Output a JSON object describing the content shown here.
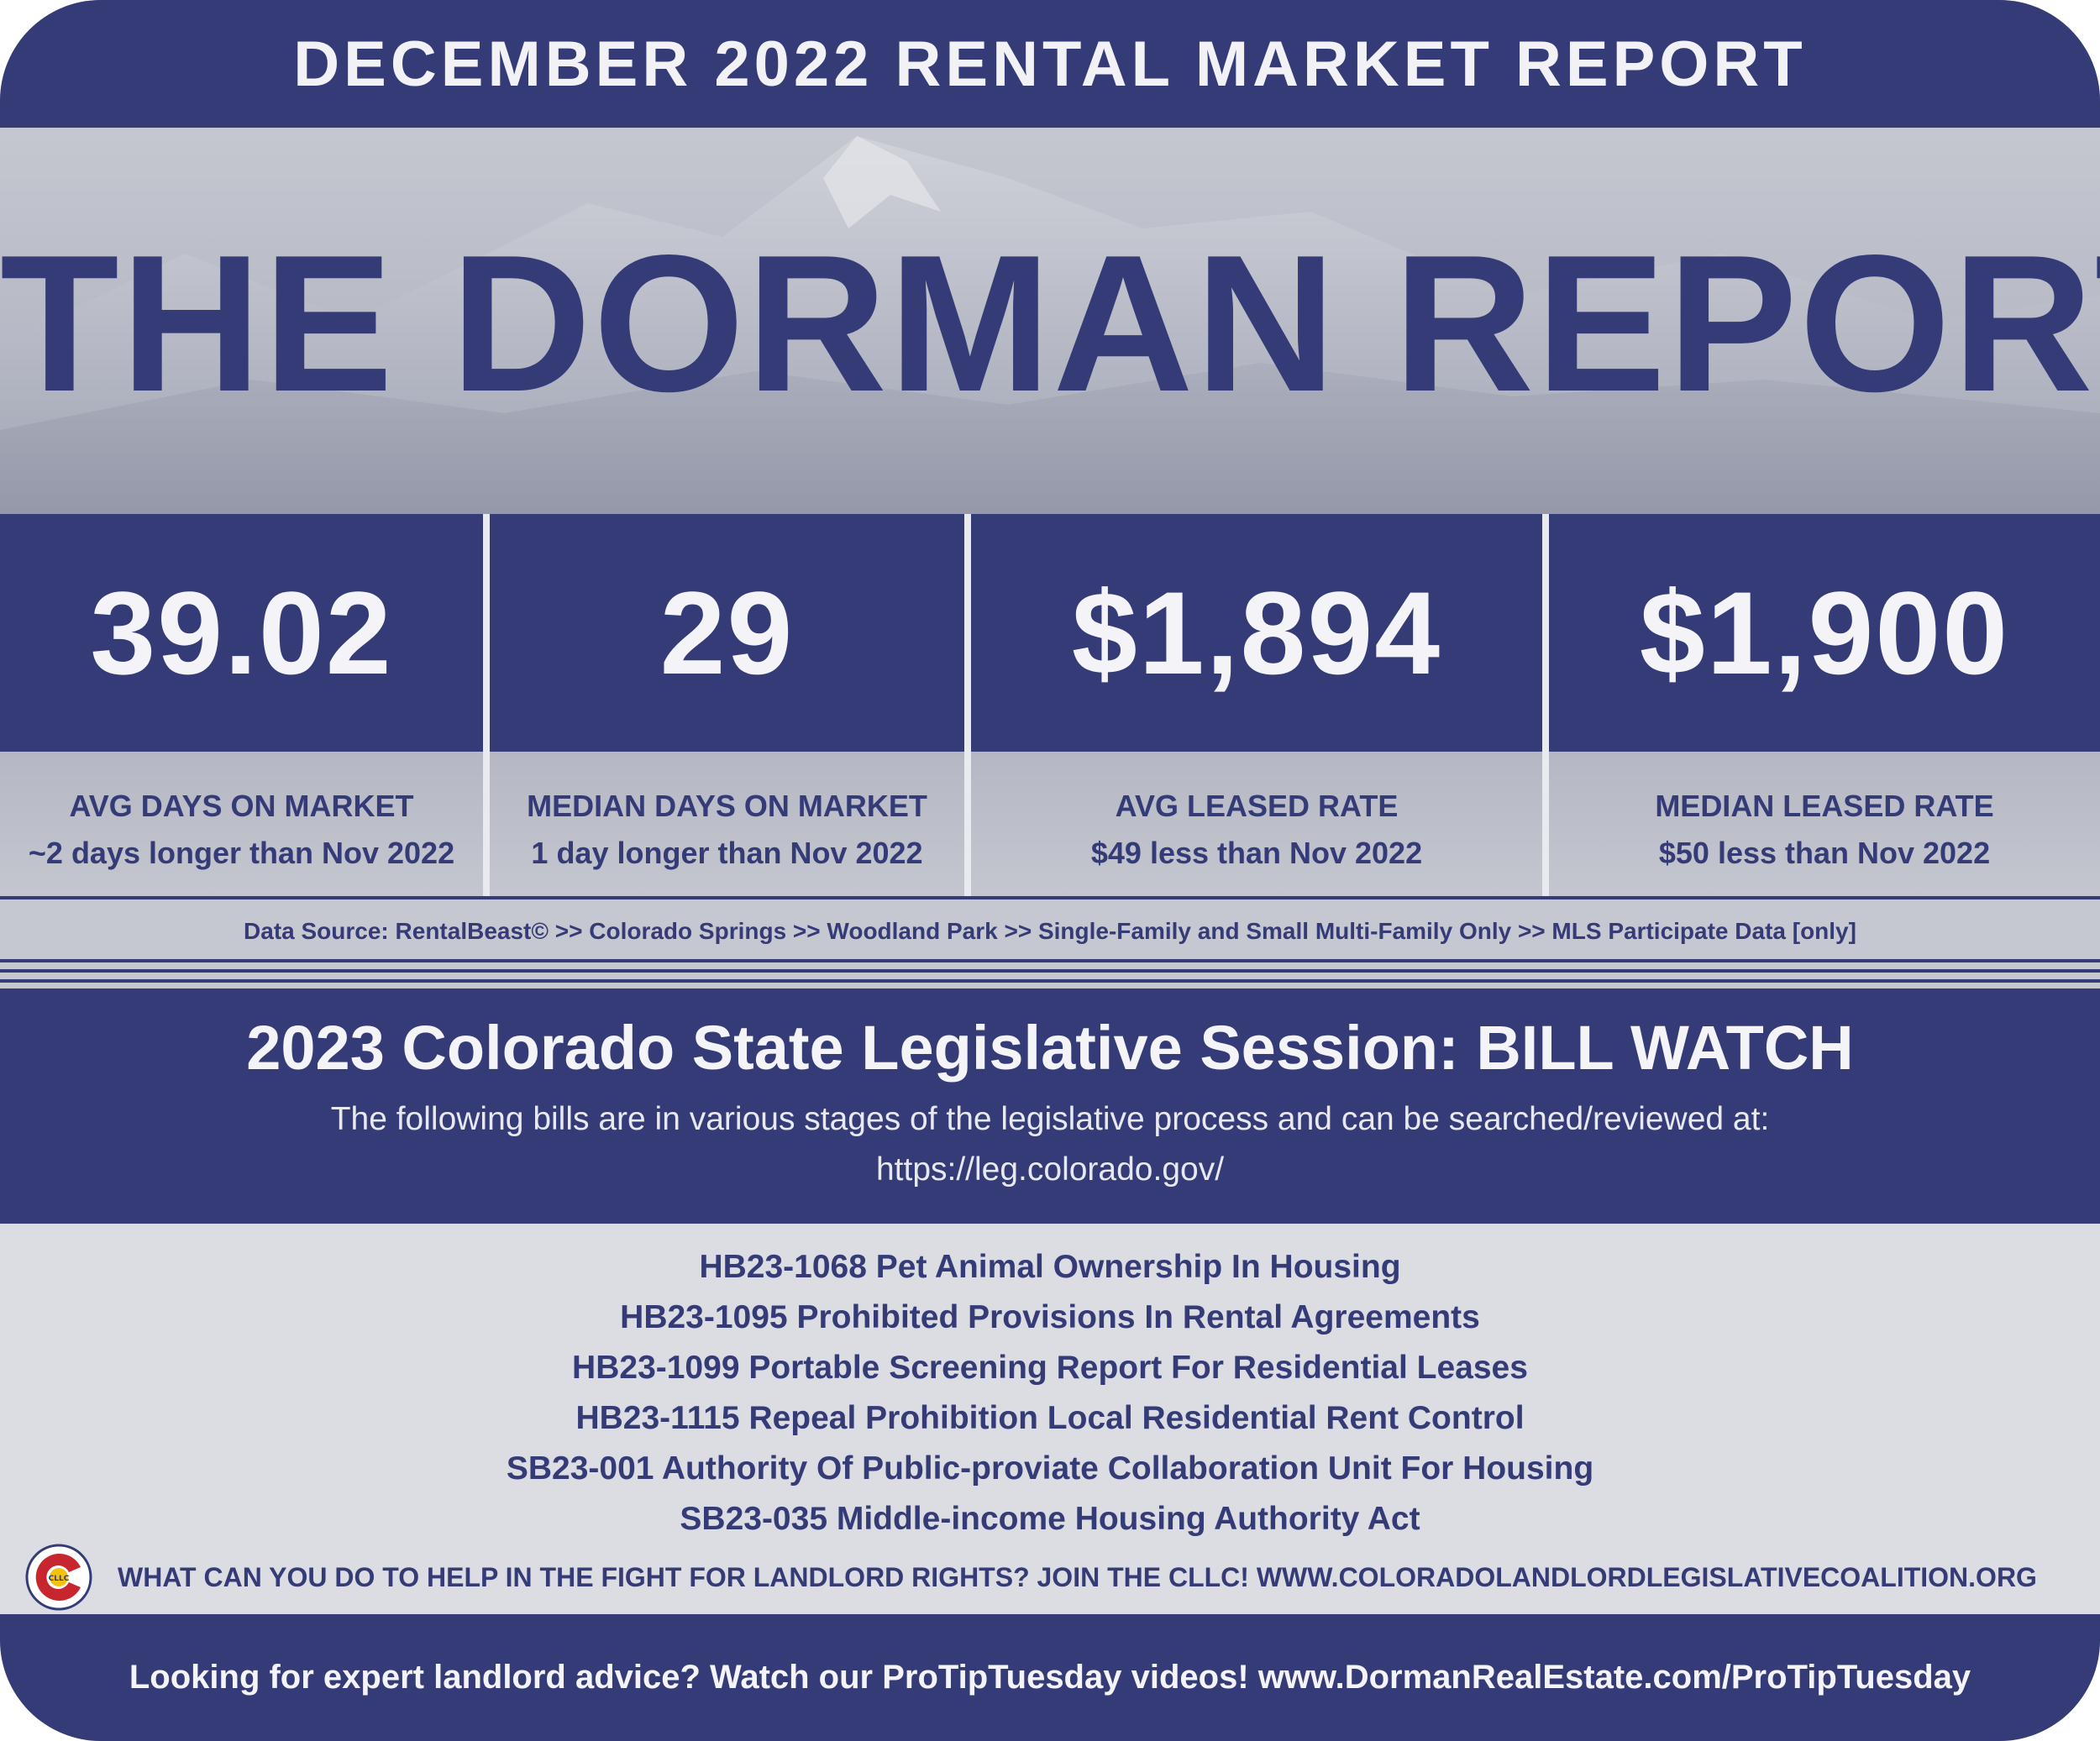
{
  "header": {
    "report_title": "DECEMBER 2022 RENTAL MARKET REPORT",
    "main_title": "THE DORMAN REPORT"
  },
  "stats": [
    {
      "value": "39.02",
      "label": "AVG DAYS ON MARKET",
      "change": "~2 days longer than Nov 2022"
    },
    {
      "value": "29",
      "label": "MEDIAN DAYS ON MARKET",
      "change": "1 day longer than Nov 2022"
    },
    {
      "value": "$1,894",
      "label": "AVG LEASED RATE",
      "change": "$49 less than Nov 2022"
    },
    {
      "value": "$1,900",
      "label": "MEDIAN LEASED RATE",
      "change": "$50 less than Nov 2022"
    }
  ],
  "data_source": "Data Source: RentalBeast© >> Colorado Springs >> Woodland Park >> Single-Family and Small Multi-Family Only >> MLS Participate Data [only]",
  "bill_watch": {
    "title": "2023 Colorado State Legislative Session: BILL WATCH",
    "description": "The following bills are in various stages of the legislative process and can be searched/reviewed at:",
    "url": "https://leg.colorado.gov/",
    "bills": [
      "HB23-1068 Pet Animal Ownership In Housing",
      "HB23-1095 Prohibited Provisions In Rental Agreements",
      "HB23-1099 Portable Screening Report For Residential Leases",
      "HB23-1115 Repeal Prohibition Local Residential Rent Control",
      "SB23-001 Authority Of Public-proviate Collaboration Unit For Housing",
      "SB23-035 Middle-income Housing Authority Act"
    ]
  },
  "cllc": {
    "logo_text": "CLLC",
    "message": "WHAT CAN YOU DO TO HELP IN THE FIGHT FOR LANDLORD RIGHTS? JOIN THE CLLC! WWW.COLORADOLANDLORDLEGISLATIVECOALITION.ORG"
  },
  "footer": {
    "text": "Looking for expert landlord advice? Watch our ProTipTuesday videos! www.DormanRealEstate.com/ProTipTuesday"
  },
  "colors": {
    "navy": "#343b77",
    "panel": "#c8cad3",
    "list_bg": "#dcdde2",
    "text_light": "#f4f4f8"
  },
  "icons": {
    "hero_background": "mountain-image",
    "cllc_logo": "colorado-flag-logo"
  }
}
